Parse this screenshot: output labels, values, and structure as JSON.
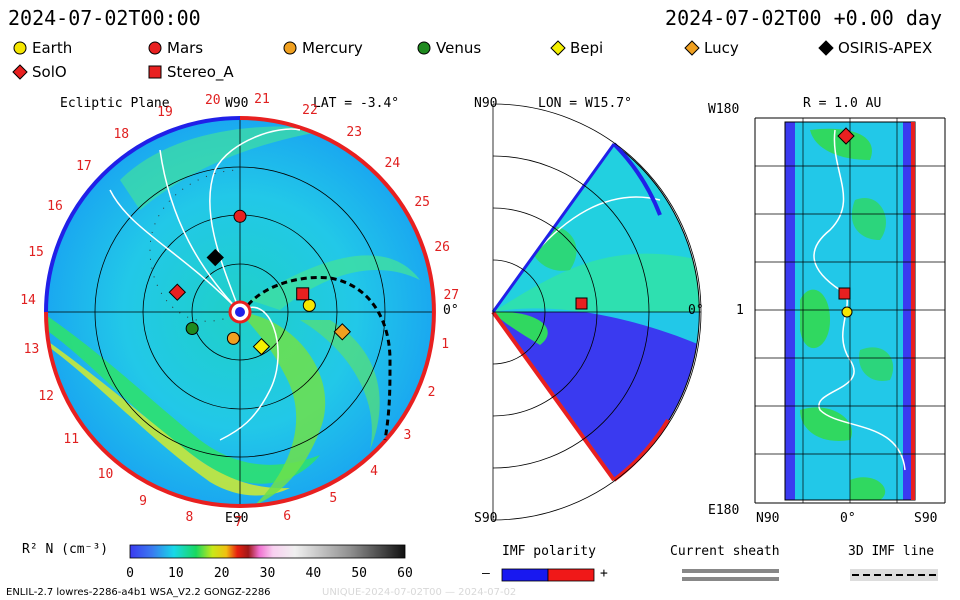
{
  "header": {
    "left_time": "2024-07-02T00:00",
    "right_time": "2024-07-02T00 +0.00 day"
  },
  "legend": [
    {
      "label": "Earth",
      "shape": "circle",
      "color": "#f5e600"
    },
    {
      "label": "Mars",
      "shape": "circle",
      "color": "#e82020"
    },
    {
      "label": "Mercury",
      "shape": "circle",
      "color": "#f0a020"
    },
    {
      "label": "Venus",
      "shape": "circle",
      "color": "#1f8a1f"
    },
    {
      "label": "Bepi",
      "shape": "diamond",
      "color": "#f5f000"
    },
    {
      "label": "Lucy",
      "shape": "diamond",
      "color": "#f0a020"
    },
    {
      "label": "OSIRIS-APEX",
      "shape": "diamond",
      "color": "#000000"
    },
    {
      "label": "SolO",
      "shape": "diamond",
      "color": "#e82020"
    },
    {
      "label": "Stereo_A",
      "shape": "square",
      "color": "#e82020"
    }
  ],
  "panel1": {
    "title": "Ecliptic Plane",
    "top_label": "W90",
    "lat_label": "LAT = -3.4°",
    "right_label": "0°",
    "bottom_label": "E90",
    "rotation_labels": [
      "27",
      "1",
      "2",
      "3",
      "4",
      "5",
      "6",
      "7",
      "8",
      "9",
      "10",
      "11",
      "12",
      "13",
      "14",
      "15",
      "16",
      "17",
      "18",
      "19",
      "20",
      "21",
      "22",
      "23",
      "24",
      "25",
      "26"
    ]
  },
  "panel2": {
    "top_left": "N90",
    "lon_label": "LON = W15.7°",
    "right_label": "0°",
    "bottom_left": "S90"
  },
  "panel3": {
    "top_left": "W180",
    "r_label": "R = 1.0 AU",
    "left_mid": "1",
    "bottom_left": "E180",
    "x_left": "N90",
    "x_mid": "0°",
    "x_right": "S90"
  },
  "colorbar": {
    "label": "R² N (cm⁻³)",
    "ticks": [
      "0",
      "10",
      "20",
      "30",
      "40",
      "50",
      "60"
    ]
  },
  "bottom": {
    "imf_label": "IMF polarity",
    "minus": "–",
    "plus": "+",
    "sheath_label": "Current sheath",
    "imf3d_label": "3D IMF line"
  },
  "footer": {
    "left": "ENLIL-2.7 lowres-2286-a4b1 WSA_V2.2 GONGZ-2286",
    "right": "UNIQUE-2024-07-02T00 — 2024-07-02"
  },
  "chart_data": {
    "type": "heatmap",
    "title": "",
    "colorbar_range": [
      0,
      60
    ],
    "colorbar_ticks": [
      0,
      10,
      20,
      30,
      40,
      50,
      60
    ],
    "lat_deg": -3.4,
    "lon_deg": "W15.7",
    "radius_au": 1.0,
    "objects": [
      {
        "name": "Earth",
        "x": 0.42,
        "y": 0.04
      },
      {
        "name": "Mars",
        "x": 0.0,
        "y": 0.58
      },
      {
        "name": "Mercury",
        "x": -0.04,
        "y": -0.16
      },
      {
        "name": "Venus",
        "x": -0.29,
        "y": -0.1
      },
      {
        "name": "Bepi",
        "x": 0.13,
        "y": -0.21
      },
      {
        "name": "Lucy",
        "x": 0.62,
        "y": -0.12
      },
      {
        "name": "OSIRIS-APEX",
        "x": -0.15,
        "y": 0.33
      },
      {
        "name": "SolO",
        "x": -0.38,
        "y": 0.12
      },
      {
        "name": "Stereo_A",
        "x": 0.38,
        "y": 0.11
      }
    ]
  }
}
